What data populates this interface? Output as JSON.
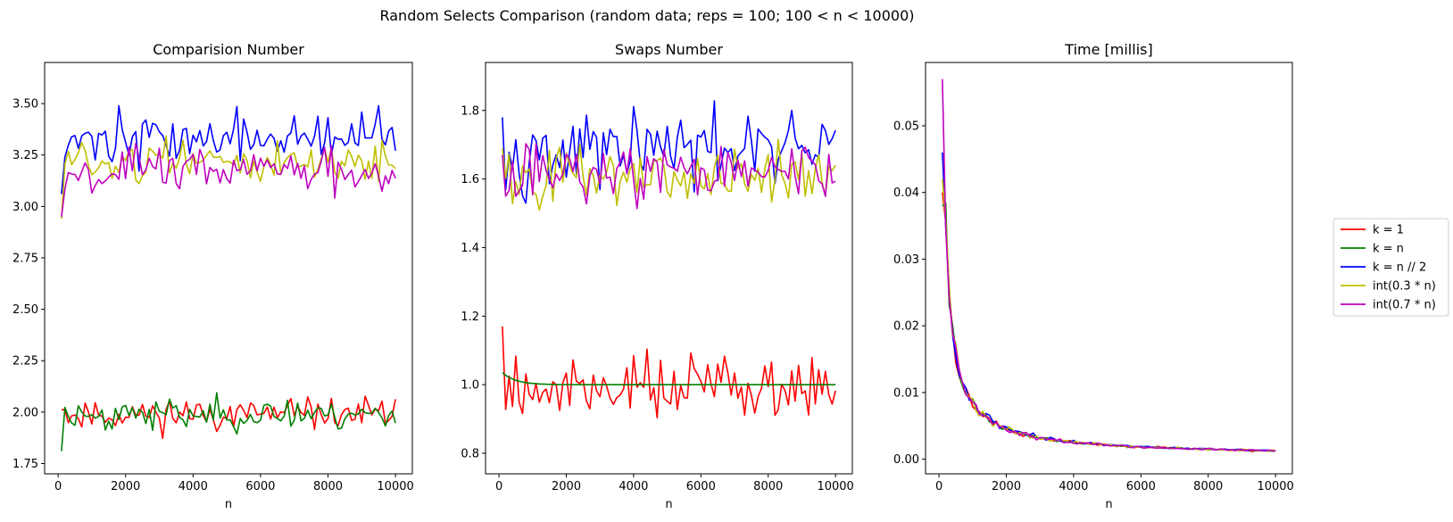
{
  "figure": {
    "suptitle": "Random Selects Comparison (random data;  reps = 100;  100 < n < 10000)"
  },
  "legend": {
    "placement": "right",
    "entries": [
      {
        "label": "k = 1",
        "color": "#ff0000"
      },
      {
        "label": "k = n",
        "color": "#008000"
      },
      {
        "label": "k = n // 2",
        "color": "#0000ff"
      },
      {
        "label": "int(0.3 * n)",
        "color": "#bfbf00"
      },
      {
        "label": "int(0.7 * n)",
        "color": "#bf00bf"
      }
    ]
  },
  "chart_data": [
    {
      "type": "line",
      "title": "Comparision Number",
      "xlabel": "n",
      "ylabel": "",
      "xlim": [
        -400,
        10500
      ],
      "ylim": [
        1.7,
        3.7
      ],
      "xticks": [
        0,
        2000,
        4000,
        6000,
        8000,
        10000
      ],
      "yticks": [
        1.75,
        2.0,
        2.25,
        2.5,
        2.75,
        3.0,
        3.25,
        3.5
      ],
      "ytick_labels": [
        "1.75",
        "2.00",
        "2.25",
        "2.50",
        "2.75",
        "3.00",
        "3.25",
        "3.50"
      ],
      "x": {
        "start": 100,
        "end": 10000,
        "step": 100
      },
      "series": [
        {
          "name": "k = 1",
          "color": "#ff0000",
          "mean": 1.99,
          "noise": 0.055,
          "shape": [
            [
              0,
              2.01
            ]
          ],
          "seed": 11
        },
        {
          "name": "k = n",
          "color": "#008000",
          "mean": 1.99,
          "noise": 0.055,
          "shape": [
            [
              0,
              1.81
            ],
            [
              300,
              1.95
            ]
          ],
          "seed": 23
        },
        {
          "name": "k = n // 2",
          "color": "#0000ff",
          "mean": 3.33,
          "noise": 0.09,
          "shape": [
            [
              0,
              3.06
            ],
            [
              200,
              3.24
            ]
          ],
          "seed": 37
        },
        {
          "name": "int(0.3 * n)",
          "color": "#bfbf00",
          "mean": 3.22,
          "noise": 0.07,
          "shape": [
            [
              0,
              2.94
            ],
            [
              300,
              3.15
            ]
          ],
          "seed": 51
        },
        {
          "name": "int(0.7 * n)",
          "color": "#bf00bf",
          "mean": 3.18,
          "noise": 0.08,
          "shape": [
            [
              0,
              2.95
            ],
            [
              200,
              2.92
            ],
            [
              600,
              2.9
            ]
          ],
          "seed": 67
        }
      ]
    },
    {
      "type": "line",
      "title": "Swaps Number",
      "xlabel": "n",
      "ylabel": "",
      "xlim": [
        -400,
        10500
      ],
      "ylim": [
        0.74,
        1.94
      ],
      "xticks": [
        0,
        2000,
        4000,
        6000,
        8000,
        10000
      ],
      "yticks": [
        0.8,
        1.0,
        1.2,
        1.4,
        1.6,
        1.8
      ],
      "ytick_labels": [
        "0.8",
        "1.0",
        "1.2",
        "1.4",
        "1.6",
        "1.8"
      ],
      "x": {
        "start": 100,
        "end": 10000,
        "step": 100
      },
      "series": [
        {
          "name": "k = 1",
          "color": "#ff0000",
          "mean": 1.0,
          "noise": 0.07,
          "shape": [
            [
              0,
              1.17
            ],
            [
              200,
              1.0
            ]
          ],
          "seed": 79
        },
        {
          "name": "k = n",
          "color": "#008000",
          "mean": 1.0,
          "noise": 0.0,
          "decay": {
            "amp": 0.035,
            "tau": 400
          },
          "seed": 83
        },
        {
          "name": "k = n // 2",
          "color": "#0000ff",
          "mean": 1.68,
          "noise": 0.08,
          "shape": [
            [
              0,
              1.78
            ]
          ],
          "seed": 97
        },
        {
          "name": "int(0.3 * n)",
          "color": "#bfbf00",
          "mean": 1.61,
          "noise": 0.065,
          "shape": [
            [
              0,
              1.69
            ]
          ],
          "seed": 101
        },
        {
          "name": "int(0.7 * n)",
          "color": "#bf00bf",
          "mean": 1.62,
          "noise": 0.06,
          "shape": [
            [
              0,
              1.67
            ]
          ],
          "seed": 113
        }
      ]
    },
    {
      "type": "line",
      "title": "Time [millis]",
      "xlabel": "n",
      "ylabel": "",
      "xlim": [
        -400,
        10500
      ],
      "ylim": [
        -0.0022,
        0.0595
      ],
      "xticks": [
        0,
        2000,
        4000,
        6000,
        8000,
        10000
      ],
      "yticks": [
        0.0,
        0.01,
        0.02,
        0.03,
        0.04,
        0.05
      ],
      "ytick_labels": [
        "0.00",
        "0.01",
        "0.02",
        "0.03",
        "0.04",
        "0.05"
      ],
      "x": {
        "start": 100,
        "end": 10000,
        "step": 100
      },
      "series": [
        {
          "name": "k = 1",
          "color": "#ff0000",
          "power": {
            "c": 5.0,
            "floor": 0.0003
          },
          "noise": 0.07,
          "shape": [
            [
              0,
              0.04
            ]
          ],
          "seed": 127
        },
        {
          "name": "k = n",
          "color": "#008000",
          "power": {
            "c": 5.0,
            "floor": 0.0003
          },
          "noise": 0.06,
          "shape": [
            [
              0,
              0.038
            ]
          ],
          "seed": 131
        },
        {
          "name": "k = n // 2",
          "color": "#0000ff",
          "power": {
            "c": 5.1,
            "floor": 0.0003
          },
          "noise": 0.07,
          "shape": [
            [
              0,
              0.046
            ]
          ],
          "seed": 137
        },
        {
          "name": "int(0.3 * n)",
          "color": "#bfbf00",
          "power": {
            "c": 5.0,
            "floor": 0.0003
          },
          "noise": 0.07,
          "shape": [
            [
              0,
              0.042
            ]
          ],
          "seed": 139
        },
        {
          "name": "int(0.7 * n)",
          "color": "#bf00bf",
          "power": {
            "c": 5.0,
            "floor": 0.0003
          },
          "noise": 0.07,
          "shape": [
            [
              0,
              0.057
            ]
          ],
          "seed": 149
        }
      ]
    }
  ]
}
